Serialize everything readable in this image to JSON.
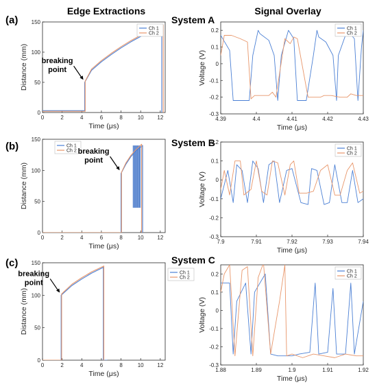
{
  "headers": {
    "left_column": "Edge Extractions",
    "right_column": "Signal Overlay"
  },
  "rows": [
    {
      "panel_label": "(a)",
      "system_label": "System A"
    },
    {
      "panel_label": "(b)",
      "system_label": "System B"
    },
    {
      "panel_label": "(c)",
      "system_label": "System C"
    }
  ],
  "colors": {
    "ch1": "#4a7fd4",
    "ch2": "#e8966a"
  },
  "chart_data": [
    {
      "id": "a-left",
      "type": "line",
      "xlabel": "Time (μs)",
      "ylabel": "Distance (mm)",
      "xlim": [
        0,
        12.5
      ],
      "ylim": [
        0,
        150
      ],
      "xticks": [
        0,
        2,
        4,
        6,
        8,
        10,
        12
      ],
      "yticks": [
        0,
        50,
        100,
        150
      ],
      "legend": [
        "Ch 1",
        "Ch 2"
      ],
      "annotation": {
        "lines": [
          "breaking",
          "point"
        ],
        "at": [
          4.3,
          52
        ]
      },
      "series": [
        {
          "name": "Ch 1",
          "x": [
            0,
            4.3,
            4.3,
            5,
            6,
            7,
            8,
            9,
            10,
            11,
            12,
            12.15,
            12.15
          ],
          "y": [
            3,
            3,
            50,
            70,
            84,
            96,
            107,
            117,
            126,
            134,
            141,
            142,
            0
          ]
        },
        {
          "name": "Ch 2",
          "x": [
            0,
            4.35,
            4.35,
            5,
            6,
            7,
            8,
            9,
            10,
            11,
            12,
            12.3,
            12.3
          ],
          "y": [
            2,
            2,
            52,
            72,
            86,
            98,
            109,
            119,
            128,
            136,
            143,
            145,
            0
          ]
        }
      ]
    },
    {
      "id": "b-left",
      "type": "line",
      "xlabel": "Time (μs)",
      "ylabel": "Distance (mm)",
      "xlim": [
        0,
        12.5
      ],
      "ylim": [
        0,
        150
      ],
      "xticks": [
        0,
        2,
        4,
        6,
        8,
        10,
        12
      ],
      "yticks": [
        0,
        50,
        100,
        150
      ],
      "legend": [
        "Ch 1",
        "Ch 2"
      ],
      "annotation": {
        "lines": [
          "breaking",
          "point"
        ],
        "at": [
          8.0,
          98
        ]
      },
      "series": [
        {
          "name": "Ch 1",
          "x": [
            0,
            8.0,
            8.0,
            8.5,
            9,
            9.5,
            10.2,
            10.2
          ],
          "y": [
            0,
            0,
            95,
            110,
            122,
            131,
            140,
            0
          ]
        },
        {
          "name": "Ch 2",
          "x": [
            0,
            8.05,
            8.05,
            8.5,
            9,
            9.5,
            10.1,
            10.1
          ],
          "y": [
            0,
            0,
            97,
            112,
            124,
            133,
            142,
            0
          ]
        }
      ],
      "bands": [
        {
          "x0": 9.2,
          "x1": 10.0,
          "y0": 40,
          "y1": 140
        }
      ]
    },
    {
      "id": "c-left",
      "type": "line",
      "xlabel": "Time (μs)",
      "ylabel": "Distance (mm)",
      "xlim": [
        0,
        12.5
      ],
      "ylim": [
        0,
        150
      ],
      "xticks": [
        0,
        2,
        4,
        6,
        8,
        10,
        12
      ],
      "yticks": [
        0,
        50,
        100,
        150
      ],
      "legend": [
        "Ch 1",
        "Ch 2"
      ],
      "annotation": {
        "lines": [
          "breaking",
          "point"
        ],
        "at": [
          1.9,
          102
        ]
      },
      "series": [
        {
          "name": "Ch 1",
          "x": [
            0,
            1.9,
            1.9,
            3,
            4,
            5,
            6.2,
            6.2,
            6.6
          ],
          "y": [
            0,
            0,
            100,
            115,
            125,
            134,
            143,
            0,
            0
          ]
        },
        {
          "name": "Ch 2",
          "x": [
            0,
            1.95,
            1.95,
            3,
            4,
            5,
            6.25,
            6.25
          ],
          "y": [
            0,
            0,
            102,
            117,
            127,
            136,
            145,
            0
          ]
        }
      ]
    },
    {
      "id": "a-right",
      "type": "line",
      "xlabel": "Time (μs)",
      "ylabel": "Voltage (V)",
      "xlim": [
        4.39,
        4.43
      ],
      "ylim": [
        -0.3,
        0.25
      ],
      "xticks": [
        4.39,
        4.4,
        4.41,
        4.42,
        4.43
      ],
      "yticks": [
        -0.3,
        -0.2,
        -0.1,
        0,
        0.1,
        0.2
      ],
      "legend": [
        "Ch 1",
        "Ch 2"
      ],
      "series": [
        {
          "name": "Ch 1",
          "x": [
            4.39,
            4.3925,
            4.3935,
            4.396,
            4.398,
            4.399,
            4.4005,
            4.401,
            4.4035,
            4.405,
            4.406,
            4.407,
            4.409,
            4.4105,
            4.4115,
            4.412,
            4.414,
            4.416,
            4.417,
            4.4175,
            4.4195,
            4.4215,
            4.4225,
            4.423,
            4.4255,
            4.4275,
            4.4285,
            4.4295,
            4.43
          ],
          "y": [
            0.17,
            0.08,
            -0.22,
            -0.22,
            -0.22,
            0.05,
            0.2,
            0.18,
            0.14,
            0.05,
            -0.22,
            0.05,
            0.2,
            0.15,
            -0.22,
            -0.22,
            -0.22,
            0.05,
            0.2,
            0.16,
            0.13,
            0.05,
            -0.22,
            0.05,
            0.2,
            0.15,
            -0.22,
            0.1,
            0.2
          ]
        },
        {
          "name": "Ch 2",
          "x": [
            4.39,
            4.391,
            4.3915,
            4.393,
            4.3955,
            4.3975,
            4.3985,
            4.3995,
            4.4015,
            4.4035,
            4.4045,
            4.4055,
            4.408,
            4.4095,
            4.4105,
            4.4115,
            4.4145,
            4.416,
            4.4165,
            4.418,
            4.419,
            4.421,
            4.4235,
            4.4255,
            4.4265,
            4.428,
            4.43
          ],
          "y": [
            0.05,
            0.17,
            0.17,
            0.17,
            0.15,
            0.13,
            -0.21,
            -0.19,
            -0.19,
            -0.19,
            -0.17,
            -0.2,
            0.15,
            0.12,
            0.16,
            0.15,
            -0.2,
            -0.2,
            -0.2,
            -0.2,
            -0.19,
            -0.19,
            -0.2,
            -0.2,
            -0.18,
            -0.19,
            -0.19
          ]
        }
      ]
    },
    {
      "id": "b-right",
      "type": "line",
      "xlabel": "Time (μs)",
      "ylabel": "Voltage (V)",
      "xlim": [
        7.9,
        7.94
      ],
      "ylim": [
        -0.3,
        0.2
      ],
      "xticks": [
        7.9,
        7.91,
        7.92,
        7.93,
        7.94
      ],
      "yticks": [
        -0.3,
        -0.2,
        -0.1,
        0,
        0.1,
        0.2
      ],
      "legend": [
        "Ch 1",
        "Ch 2"
      ],
      "series": [
        {
          "name": "Ch 1",
          "x": [
            7.9,
            7.902,
            7.9035,
            7.9045,
            7.906,
            7.9075,
            7.909,
            7.9105,
            7.912,
            7.9135,
            7.915,
            7.9165,
            7.9185,
            7.92,
            7.9225,
            7.9245,
            7.9255,
            7.927,
            7.929,
            7.9305,
            7.932,
            7.934,
            7.9355,
            7.937,
            7.9385,
            7.94
          ],
          "y": [
            -0.1,
            0.05,
            -0.12,
            0.08,
            0.05,
            -0.12,
            0.1,
            0.06,
            -0.12,
            0.08,
            0.1,
            -0.12,
            0.05,
            0.06,
            -0.12,
            -0.13,
            0.06,
            0.05,
            -0.13,
            -0.12,
            0.08,
            -0.12,
            -0.12,
            0.05,
            -0.12,
            -0.1
          ]
        },
        {
          "name": "Ch 2",
          "x": [
            7.9,
            7.901,
            7.9025,
            7.904,
            7.9055,
            7.9065,
            7.9085,
            7.91,
            7.9115,
            7.913,
            7.9145,
            7.916,
            7.918,
            7.9195,
            7.9205,
            7.922,
            7.924,
            7.926,
            7.928,
            7.93,
            7.932,
            7.9335,
            7.9355,
            7.937,
            7.939,
            7.94
          ],
          "y": [
            -0.05,
            0.05,
            -0.08,
            0.1,
            0.1,
            -0.08,
            -0.05,
            0.1,
            -0.06,
            -0.08,
            0.1,
            0.09,
            -0.08,
            0.08,
            0.1,
            -0.07,
            -0.07,
            -0.06,
            0.05,
            0.08,
            -0.08,
            -0.08,
            0.05,
            0.09,
            -0.07,
            -0.06
          ]
        }
      ]
    },
    {
      "id": "c-right",
      "type": "line",
      "xlabel": "Time (μs)",
      "ylabel": "Voltage (V)",
      "xlim": [
        1.88,
        1.92
      ],
      "ylim": [
        -0.3,
        0.25
      ],
      "xticks": [
        1.88,
        1.89,
        1.9,
        1.91,
        1.92
      ],
      "yticks": [
        -0.3,
        -0.2,
        -0.1,
        0,
        0.1,
        0.2
      ],
      "legend": [
        "Ch 1",
        "Ch 2"
      ],
      "series": [
        {
          "name": "Ch 1",
          "x": [
            1.88,
            1.8825,
            1.8835,
            1.8845,
            1.887,
            1.8885,
            1.8895,
            1.8925,
            1.894,
            1.896,
            1.898,
            1.9,
            1.902,
            1.905,
            1.9065,
            1.9075,
            1.91,
            1.9115,
            1.9125,
            1.915,
            1.9165,
            1.9175,
            1.92
          ],
          "y": [
            0.15,
            0.15,
            -0.24,
            0.05,
            0.15,
            -0.24,
            0.1,
            0.2,
            -0.24,
            -0.25,
            -0.25,
            -0.25,
            -0.24,
            -0.23,
            0.15,
            -0.24,
            -0.23,
            0.12,
            -0.24,
            -0.24,
            0.15,
            -0.24,
            0.05
          ]
        },
        {
          "name": "Ch 2",
          "x": [
            1.88,
            1.881,
            1.8825,
            1.884,
            1.886,
            1.8875,
            1.889,
            1.8905,
            1.892,
            1.894,
            1.8965,
            1.898,
            1.8985,
            1.9,
            1.903,
            1.906,
            1.909,
            1.912,
            1.915,
            1.918,
            1.92
          ],
          "y": [
            0.1,
            0.2,
            0.25,
            -0.25,
            0.22,
            0.24,
            -0.25,
            0.18,
            0.26,
            -0.24,
            0.05,
            0.25,
            -0.25,
            -0.24,
            -0.26,
            -0.24,
            -0.25,
            -0.26,
            -0.24,
            -0.25,
            -0.25
          ]
        }
      ]
    }
  ]
}
